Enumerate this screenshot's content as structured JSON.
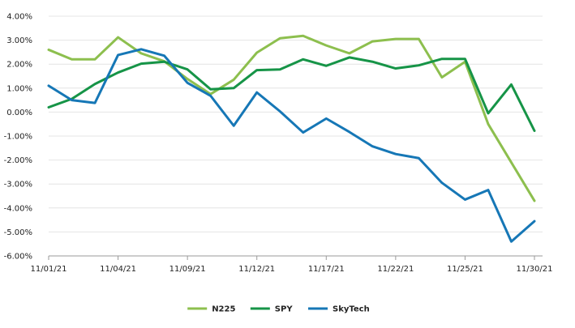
{
  "chart_data": {
    "type": "line",
    "title": "",
    "xlabel": "",
    "ylabel": "",
    "x_tick_labels": [
      "11/01/21",
      "11/04/21",
      "11/09/21",
      "11/12/21",
      "11/17/21",
      "11/22/21",
      "11/25/21",
      "11/30/21"
    ],
    "x_tick_positions": [
      0,
      3,
      6,
      9,
      12,
      15,
      18,
      21
    ],
    "y_ticks": [
      4,
      3,
      2,
      1,
      0,
      -1,
      -2,
      -3,
      -4,
      -5,
      -6
    ],
    "y_tick_labels": [
      "4.00%",
      "3.00%",
      "2.00%",
      "1.00%",
      "0.00%",
      "-1.00%",
      "-2.00%",
      "-3.00%",
      "-4.00%",
      "-5.00%",
      "-6.00%"
    ],
    "ylim": [
      -6,
      4
    ],
    "grid": "horizontal",
    "legend_position": "bottom",
    "series": [
      {
        "name": "N225",
        "color": "#8dbf4e",
        "values": [
          2.6,
          2.2,
          2.2,
          3.12,
          2.45,
          2.12,
          1.38,
          0.75,
          1.35,
          2.48,
          3.08,
          3.18,
          2.78,
          2.45,
          2.95,
          3.05,
          3.05,
          1.45,
          2.1,
          -0.5,
          -2.1,
          -3.7
        ]
      },
      {
        "name": "SPY",
        "color": "#169447",
        "values": [
          0.2,
          0.55,
          1.17,
          1.65,
          2.02,
          2.1,
          1.78,
          0.95,
          1.0,
          1.75,
          1.78,
          2.2,
          1.93,
          2.28,
          2.1,
          1.82,
          1.95,
          2.22,
          2.22,
          -0.05,
          1.15,
          -0.78
        ]
      },
      {
        "name": "SkyTech",
        "color": "#1677b6",
        "values": [
          1.1,
          0.5,
          0.38,
          2.38,
          2.62,
          2.35,
          1.22,
          0.68,
          -0.57,
          0.82,
          0.03,
          -0.85,
          -0.27,
          -0.83,
          -1.43,
          -1.75,
          -1.92,
          -2.95,
          -3.65,
          -3.25,
          -5.4,
          -4.55
        ]
      }
    ]
  }
}
